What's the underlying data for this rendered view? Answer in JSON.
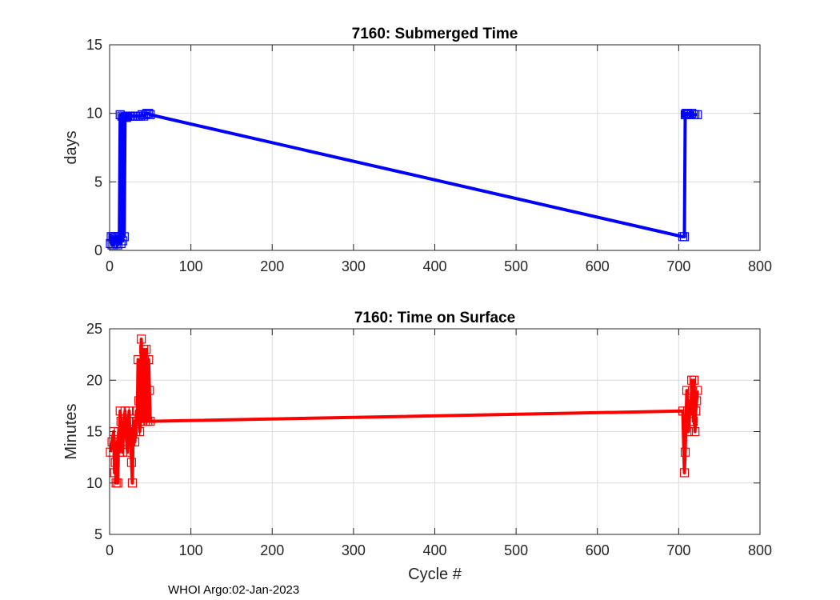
{
  "colors": {
    "submerged": "#0000ff",
    "surface": "#ff0000",
    "grid": "#dcdcdc",
    "axis": "#262626"
  },
  "footer": "WHOI Argo:02-Jan-2023",
  "chart_data": [
    {
      "type": "line",
      "title": "7160: Submerged Time",
      "xlabel": "",
      "ylabel": "days",
      "xlim": [
        0,
        800
      ],
      "ylim": [
        0,
        15
      ],
      "xticks": [
        0,
        100,
        200,
        300,
        400,
        500,
        600,
        700,
        800
      ],
      "yticks": [
        0,
        5,
        10,
        15
      ],
      "grid": true,
      "marker": "square",
      "series_color": "#0000ff",
      "x": [
        1,
        2,
        3,
        4,
        5,
        6,
        7,
        8,
        9,
        10,
        11,
        12,
        13,
        14,
        15,
        16,
        17,
        18,
        19,
        20,
        21,
        22,
        24,
        26,
        28,
        30,
        32,
        34,
        36,
        38,
        40,
        42,
        44,
        46,
        48,
        50,
        705,
        707,
        708,
        709,
        710,
        711,
        712,
        714,
        716,
        718,
        720,
        723
      ],
      "y": [
        0.5,
        1.0,
        0.4,
        1.0,
        0.4,
        0.9,
        1.0,
        0.5,
        1.0,
        0.4,
        1.0,
        0.9,
        9.9,
        0.5,
        9.8,
        0.7,
        9.7,
        1.0,
        9.7,
        9.8,
        9.7,
        9.8,
        9.8,
        9.8,
        9.8,
        9.8,
        9.8,
        9.8,
        9.8,
        9.8,
        9.9,
        9.8,
        9.9,
        10.0,
        10.0,
        9.9,
        1.0,
        1.0,
        9.9,
        10.0,
        9.9,
        10.0,
        9.9,
        9.9,
        10.0,
        9.9,
        9.9,
        9.9
      ]
    },
    {
      "type": "line",
      "title": "7160: Time on Surface",
      "xlabel": "Cycle #",
      "ylabel": "Minutes",
      "xlim": [
        0,
        800
      ],
      "ylim": [
        5,
        25
      ],
      "xticks": [
        0,
        100,
        200,
        300,
        400,
        500,
        600,
        700,
        800
      ],
      "yticks": [
        5,
        10,
        15,
        20,
        25
      ],
      "grid": true,
      "marker": "square",
      "series_color": "#ff0000",
      "x": [
        1,
        3,
        5,
        6,
        7,
        8,
        9,
        10,
        11,
        12,
        13,
        14,
        15,
        16,
        17,
        18,
        19,
        20,
        21,
        22,
        23,
        24,
        25,
        26,
        27,
        28,
        29,
        30,
        31,
        32,
        33,
        34,
        35,
        36,
        37,
        38,
        39,
        40,
        41,
        42,
        43,
        44,
        45,
        46,
        47,
        48,
        49,
        50,
        705,
        707,
        708,
        709,
        710,
        711,
        712,
        713,
        714,
        715,
        716,
        717,
        718,
        719,
        720,
        721,
        722,
        723
      ],
      "y": [
        13,
        14,
        15,
        11,
        12,
        10,
        14,
        10,
        15,
        13,
        17,
        16,
        14,
        13,
        15,
        16,
        17,
        15,
        14,
        13,
        16,
        17,
        15,
        14,
        12,
        10,
        15,
        16,
        14,
        15,
        17,
        16,
        22,
        18,
        15,
        16,
        24,
        20,
        16,
        23,
        22,
        16,
        23,
        17,
        16,
        22,
        19,
        16,
        17,
        11,
        13,
        16,
        19,
        17,
        15,
        16,
        18,
        17,
        20,
        19,
        16,
        20,
        15,
        17,
        18,
        19
      ]
    }
  ]
}
